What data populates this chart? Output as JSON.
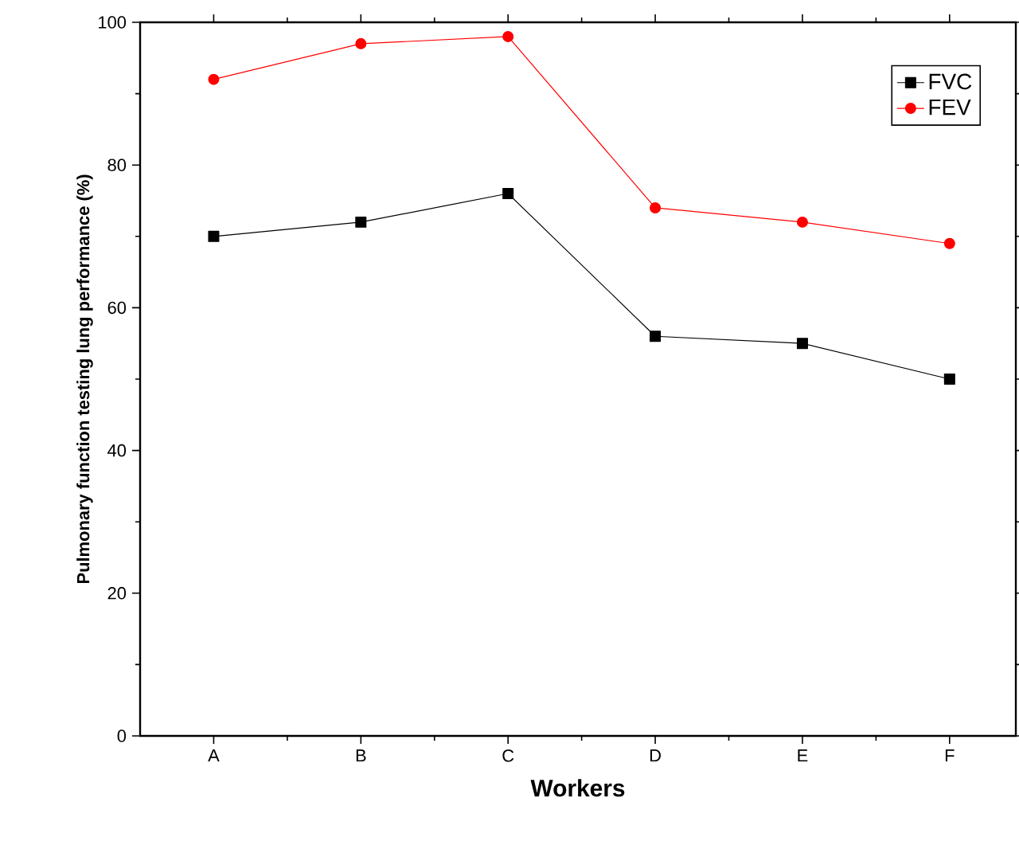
{
  "chart_data": {
    "type": "line",
    "xlabel": "Workers",
    "ylabel": "Pulmonary function testing lung performance (%)",
    "categories": [
      "A",
      "B",
      "C",
      "D",
      "E",
      "F"
    ],
    "series": [
      {
        "name": "FVC",
        "color": "#000000",
        "marker": "square",
        "values": [
          70,
          72,
          76,
          56,
          55,
          50
        ]
      },
      {
        "name": "FEV",
        "color": "#ff0000",
        "marker": "circle",
        "values": [
          92,
          97,
          98,
          74,
          72,
          69
        ]
      }
    ],
    "ylim": [
      0,
      100
    ],
    "yticks": [
      0,
      20,
      40,
      60,
      80,
      100
    ],
    "legend": "top right",
    "grid": false
  }
}
